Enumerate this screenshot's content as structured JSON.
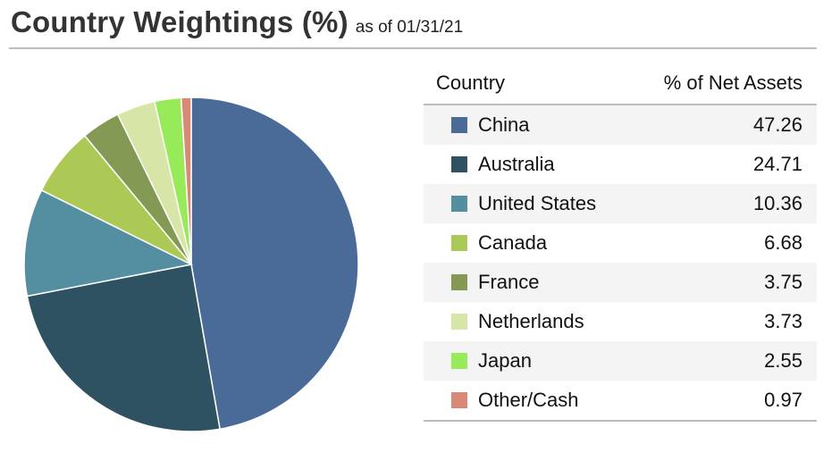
{
  "header": {
    "title": "Country Weightings (%)",
    "subtitle": "as of 01/31/21"
  },
  "table": {
    "col_country": "Country",
    "col_value": "% of Net Assets"
  },
  "chart_data": {
    "type": "pie",
    "title": "Country Weightings (%)",
    "subtitle": "as of 01/31/21",
    "legend_position": "right",
    "slices": [
      {
        "label": "China",
        "value": 47.26,
        "display": "47.26",
        "color": "#4a6a97"
      },
      {
        "label": "Australia",
        "value": 24.71,
        "display": "24.71",
        "color": "#2e5262"
      },
      {
        "label": "United States",
        "value": 10.36,
        "display": "10.36",
        "color": "#548ea1"
      },
      {
        "label": "Canada",
        "value": 6.68,
        "display": "6.68",
        "color": "#acc855"
      },
      {
        "label": "France",
        "value": 3.75,
        "display": "3.75",
        "color": "#849953"
      },
      {
        "label": "Netherlands",
        "value": 3.73,
        "display": "3.73",
        "color": "#d7e6a6"
      },
      {
        "label": "Japan",
        "value": 2.55,
        "display": "2.55",
        "color": "#97eb58"
      },
      {
        "label": "Other/Cash",
        "value": 0.97,
        "display": "0.97",
        "color": "#d98a74"
      }
    ]
  }
}
